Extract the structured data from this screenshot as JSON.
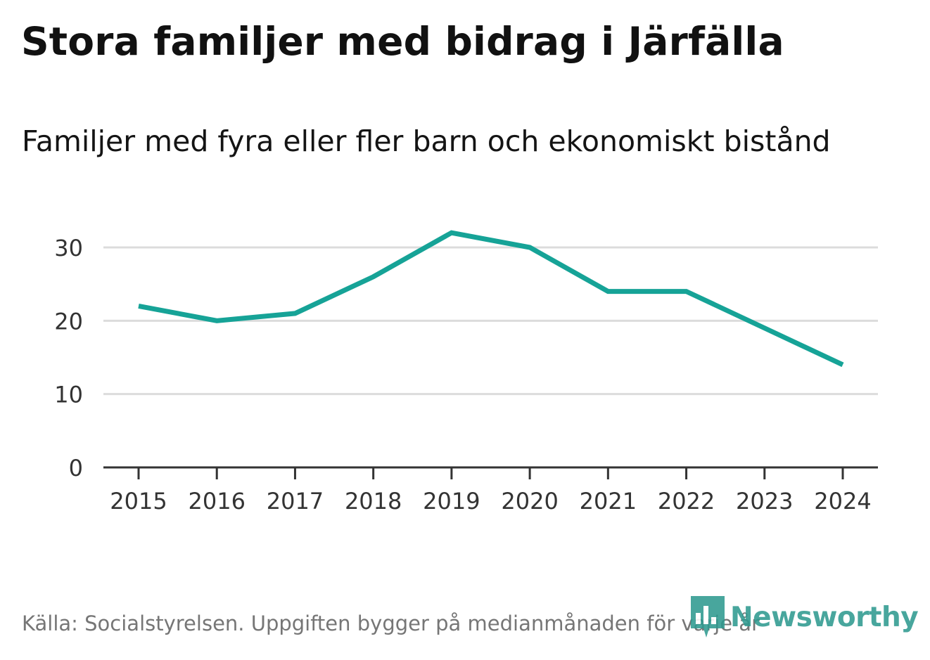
{
  "header": {
    "title": "Stora familjer med bidrag i Järfälla",
    "subtitle": "Familjer med fyra eller fler barn och ekonomiskt bistånd"
  },
  "footer": {
    "source": "Källa: Socialstyrelsen. Uppgiften bygger på medianmånaden för varje år",
    "brand": "Newsworthy"
  },
  "colors": {
    "line": "#16a397",
    "grid": "#dcdcdc",
    "axis": "#333333",
    "brand": "#2f9a90"
  },
  "chart_data": {
    "type": "line",
    "title": "Stora familjer med bidrag i Järfälla",
    "subtitle": "Familjer med fyra eller fler barn och ekonomiskt bistånd",
    "xlabel": "",
    "ylabel": "",
    "categories": [
      "2015",
      "2016",
      "2017",
      "2018",
      "2019",
      "2020",
      "2021",
      "2022",
      "2023",
      "2024"
    ],
    "series": [
      {
        "name": "Familjer med fyra eller fler barn och ekonomiskt bistånd",
        "values": [
          22,
          20,
          21,
          26,
          32,
          30,
          24,
          24,
          19,
          14
        ]
      }
    ],
    "ylim": [
      0,
      34
    ],
    "yticks": [
      0,
      10,
      20,
      30
    ],
    "grid": true,
    "legend": "none"
  }
}
